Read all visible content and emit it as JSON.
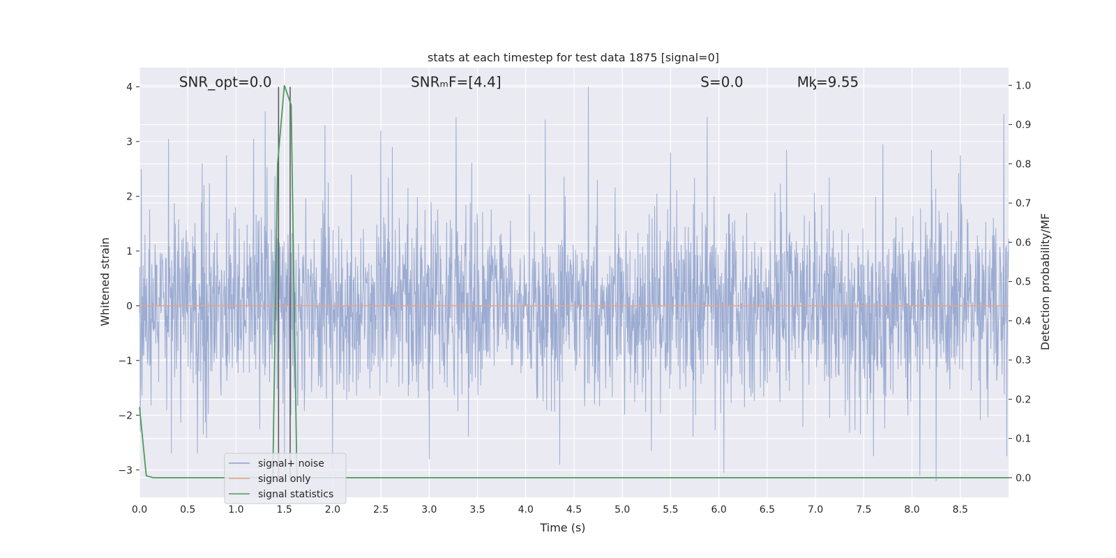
{
  "chart_data": {
    "type": "line",
    "title": "stats at each timestep for test data 1875 [signal=0]",
    "xlabel": "Time (s)",
    "ylabel": "Whitened strain",
    "ylabel_right": "Detection probability/MF",
    "xlim": [
      0.0,
      9.0
    ],
    "ylim": [
      -3.5,
      4.35
    ],
    "ylim_right": [
      -0.05,
      1.045
    ],
    "x_ticks": [
      0.0,
      0.5,
      1.0,
      1.5,
      2.0,
      2.5,
      3.0,
      3.5,
      4.0,
      4.5,
      5.0,
      5.5,
      6.0,
      6.5,
      7.0,
      7.5,
      8.0,
      8.5
    ],
    "x_tick_labels": [
      "0.0",
      "0.5",
      "1.0",
      "1.5",
      "2.0",
      "2.5",
      "3.0",
      "3.5",
      "4.0",
      "4.5",
      "5.0",
      "5.5",
      "6.0",
      "6.5",
      "7.0",
      "7.5",
      "8.0",
      "8.5"
    ],
    "y_ticks": [
      -3,
      -2,
      -1,
      0,
      1,
      2,
      3,
      4
    ],
    "y_tick_labels": [
      "−3",
      "−2",
      "−1",
      "0",
      "1",
      "2",
      "3",
      "4"
    ],
    "y_ticks_right": [
      0.0,
      0.1,
      0.2,
      0.3,
      0.4,
      0.5,
      0.6,
      0.7,
      0.8,
      0.9,
      1.0
    ],
    "y_tick_labels_right": [
      "0.0",
      "0.1",
      "0.2",
      "0.3",
      "0.4",
      "0.5",
      "0.6",
      "0.7",
      "0.8",
      "0.9",
      "1.0"
    ],
    "grid": true,
    "legend_position": "lower-left",
    "annotations": [
      {
        "text": "SNR_opt=0.0",
        "x": 0.2,
        "y": 4.0
      },
      {
        "text": "SNRₘF=[4.4]",
        "x": 2.6,
        "y": 4.0
      },
      {
        "text": "S=0.0",
        "x": 5.6,
        "y": 4.0
      },
      {
        "text": "Mᶄ=9.55",
        "x": 6.6,
        "y": 4.0
      }
    ],
    "vertical_lines": [
      1.44,
      1.56
    ],
    "series": [
      {
        "name": "signal+ noise",
        "axis": "left",
        "color": "#8da0cb",
        "style": "dense noise, amplitude ~N(0,1)",
        "peaks": [
          [
            0.02,
            2.5
          ],
          [
            0.3,
            3.05
          ],
          [
            0.65,
            2.6
          ],
          [
            0.9,
            2.75
          ],
          [
            1.18,
            3.05
          ],
          [
            1.3,
            3.55
          ],
          [
            1.92,
            3.3
          ],
          [
            2.5,
            3.2
          ],
          [
            2.62,
            2.9
          ],
          [
            3.28,
            3.45
          ],
          [
            4.2,
            3.4
          ],
          [
            4.65,
            4.0
          ],
          [
            5.3,
            2.95
          ],
          [
            5.5,
            2.8
          ],
          [
            5.88,
            3.45
          ],
          [
            6.7,
            2.85
          ],
          [
            7.7,
            2.95
          ],
          [
            8.2,
            2.85
          ],
          [
            8.5,
            2.75
          ],
          [
            8.95,
            3.5
          ]
        ],
        "troughs": [
          [
            0.33,
            -2.7
          ],
          [
            0.6,
            -2.7
          ],
          [
            1.5,
            -3.05
          ],
          [
            2.0,
            -3.0
          ],
          [
            3.0,
            -2.8
          ],
          [
            4.35,
            -2.9
          ],
          [
            5.3,
            -2.65
          ],
          [
            6.05,
            -3.05
          ],
          [
            7.6,
            -2.75
          ],
          [
            8.08,
            -3.1
          ],
          [
            8.25,
            -3.2
          ],
          [
            8.98,
            -2.75
          ]
        ]
      },
      {
        "name": "signal only",
        "axis": "left",
        "color": "#e5a48d",
        "x": [
          0.0,
          9.0
        ],
        "y": [
          0.0,
          0.0
        ]
      },
      {
        "name": "signal statistics",
        "axis": "right",
        "color": "#4c9a5b",
        "x": [
          0.0,
          0.07,
          0.14,
          1.38,
          1.43,
          1.5,
          1.57,
          1.63,
          1.7,
          9.0
        ],
        "y": [
          0.18,
          0.005,
          0.0,
          0.0,
          0.8,
          1.0,
          0.95,
          0.0,
          0.0,
          0.0
        ]
      }
    ]
  }
}
